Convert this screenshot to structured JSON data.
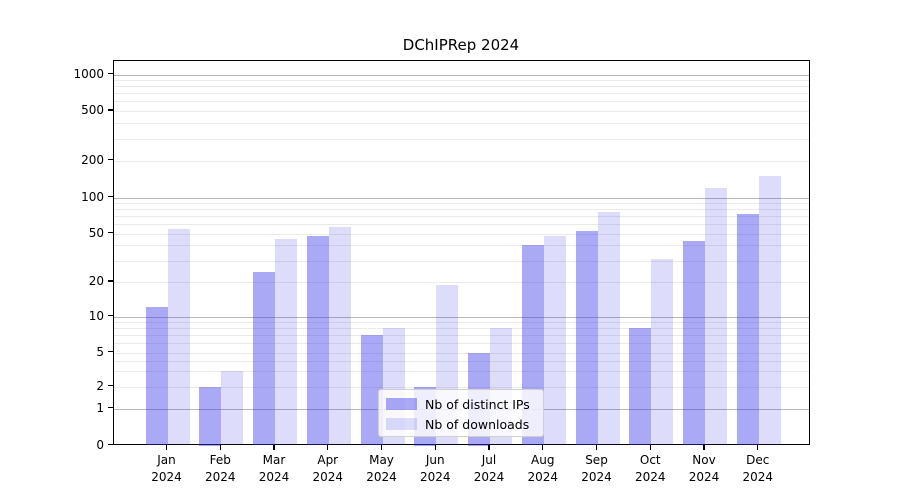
{
  "chart_title": "DChIPRep 2024",
  "chart_data": {
    "type": "bar",
    "title": "DChIPRep 2024",
    "categories": [
      "Jan 2024",
      "Feb 2024",
      "Mar 2024",
      "Apr 2024",
      "May 2024",
      "Jun 2024",
      "Jul 2024",
      "Aug 2024",
      "Sep 2024",
      "Oct 2024",
      "Nov 2024",
      "Dec 2024"
    ],
    "series": [
      {
        "name": "Nb of distinct IPs",
        "color": "rgba(50,50,230,0.42)",
        "values": [
          12,
          2,
          24,
          48,
          7,
          2,
          5,
          40,
          52,
          8,
          43,
          73
        ]
      },
      {
        "name": "Nb of downloads",
        "color": "rgba(50,50,230,0.165)",
        "values": [
          55,
          3,
          45,
          57,
          8,
          19,
          8,
          48,
          75,
          31,
          120,
          150
        ]
      }
    ],
    "xlabel": "",
    "ylabel": "",
    "y_axis": {
      "scale": "symlog",
      "tick_values": [
        0,
        1,
        2,
        5,
        10,
        20,
        50,
        100,
        200,
        500,
        1000
      ],
      "major_grid_values": [
        1,
        10,
        100,
        1000
      ],
      "minor_grid_values": [
        2,
        3,
        4,
        5,
        6,
        7,
        8,
        9,
        20,
        30,
        40,
        50,
        60,
        70,
        80,
        90,
        200,
        300,
        400,
        500,
        600,
        700,
        800,
        900
      ],
      "ylim": [
        0,
        1500
      ]
    },
    "grid": true,
    "legend_position": "lower center",
    "colors": {
      "axis": "#000000",
      "major_grid": "#b8b8b8",
      "minor_grid": "#eaeaea",
      "background": "#ffffff"
    }
  }
}
